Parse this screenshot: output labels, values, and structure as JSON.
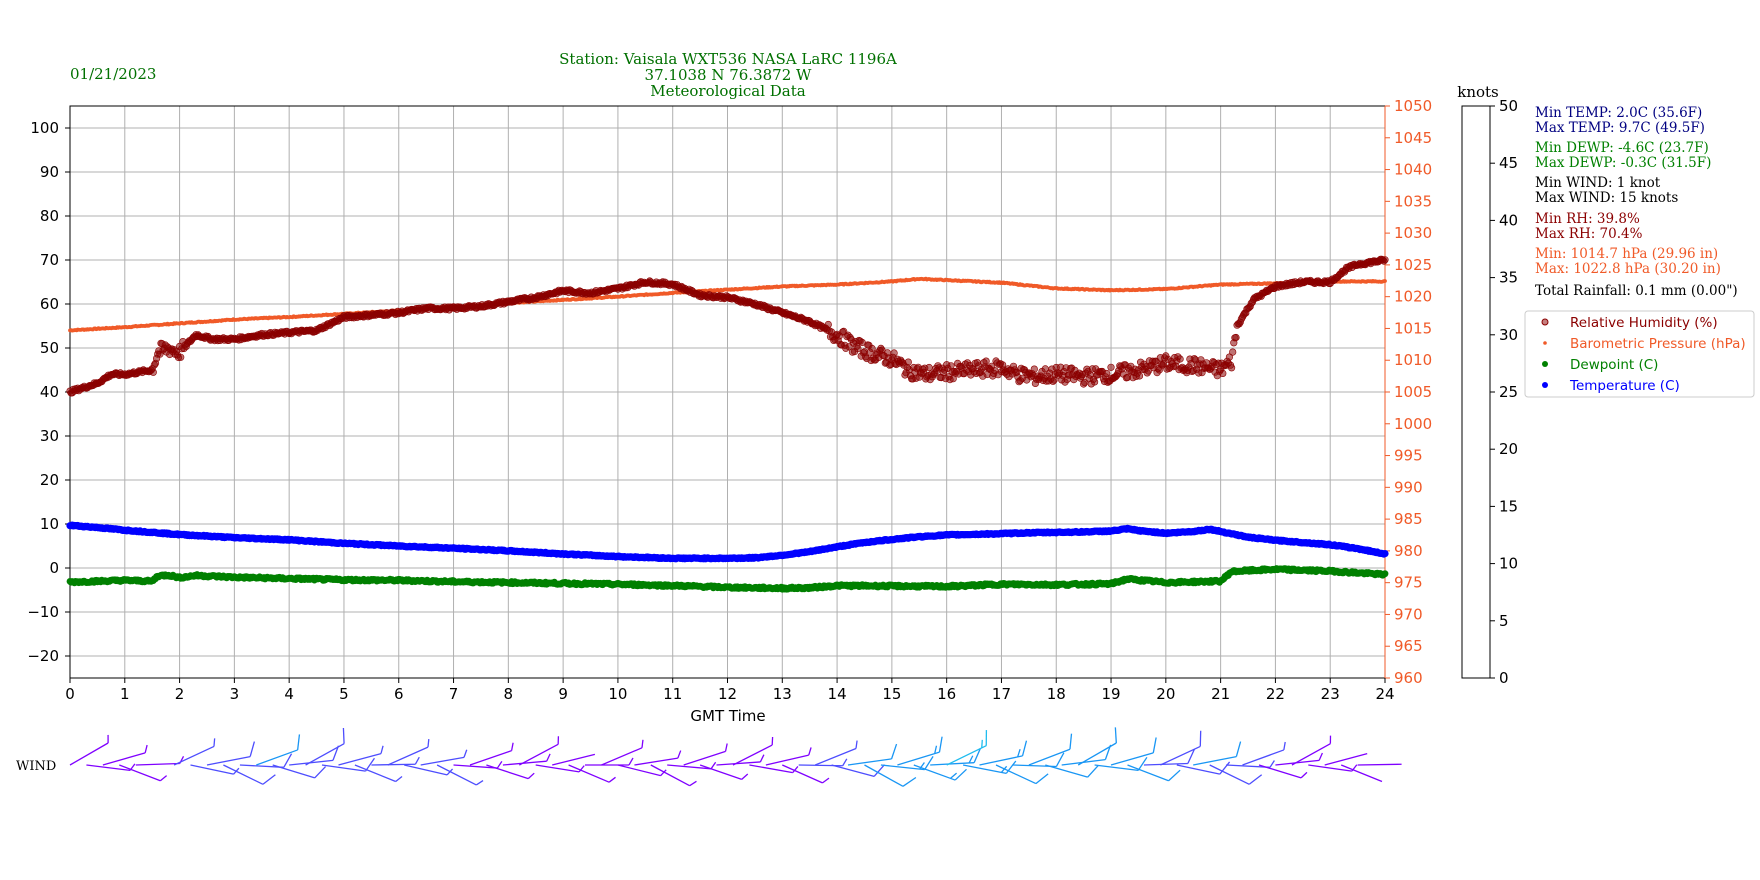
{
  "header": {
    "date": "01/21/2023",
    "title_lines": [
      "Station:  Vaisala WXT536  NASA LaRC 1196A",
      "37.1038 N 76.3872 W",
      "Meteorological Data"
    ]
  },
  "colors": {
    "green": "#007000",
    "rh": "#8b0000",
    "pressure": "#f05a28",
    "temperature": "#0000ff",
    "dewpoint": "#008000",
    "navy": "#000080"
  },
  "chart_data": {
    "type": "scatter",
    "xlabel": "GMT Time",
    "xlim": [
      0,
      24
    ],
    "x_ticks": [
      0,
      1,
      2,
      3,
      4,
      5,
      6,
      7,
      8,
      9,
      10,
      11,
      12,
      13,
      14,
      15,
      16,
      17,
      18,
      19,
      20,
      21,
      22,
      23,
      24
    ],
    "left_axis": {
      "ylim": [
        -25,
        105
      ],
      "ticks": [
        -20,
        -10,
        0,
        10,
        20,
        30,
        40,
        50,
        60,
        70,
        80,
        90,
        100
      ]
    },
    "right_axis": {
      "ylim": [
        960,
        1050
      ],
      "ticks": [
        960,
        965,
        970,
        975,
        980,
        985,
        990,
        995,
        1000,
        1005,
        1010,
        1015,
        1020,
        1025,
        1030,
        1035,
        1040,
        1045,
        1050
      ]
    },
    "grid": true,
    "legend_position": "right",
    "series": [
      {
        "name": "Relative Humidity (%)",
        "color": "#8b0000",
        "axis": "left",
        "x": [
          0,
          0.5,
          0.75,
          1,
          1.5,
          1.6,
          1.8,
          2,
          2.3,
          2.6,
          3,
          3.5,
          4,
          4.5,
          5,
          5.5,
          6,
          6.5,
          7,
          7.5,
          8,
          8.5,
          9,
          9.5,
          10,
          10.5,
          11,
          11.5,
          12,
          12.5,
          13,
          13.5,
          14,
          14.3,
          14.6,
          15,
          15.3,
          15.6,
          16,
          16.5,
          17,
          17.3,
          17.6,
          18,
          18.5,
          19,
          19.5,
          20,
          20.5,
          21,
          21.2,
          21.3,
          21.6,
          22,
          22.5,
          23,
          23.3,
          23.5,
          24
        ],
        "y": [
          40,
          42,
          44,
          44,
          45,
          49,
          50,
          49,
          53,
          52,
          52,
          53,
          53.5,
          54,
          57,
          57.5,
          58,
          59,
          59,
          59.5,
          60.5,
          61.5,
          63,
          62.5,
          63.5,
          65,
          64.5,
          62,
          61.5,
          60,
          58,
          56,
          53,
          50.5,
          49,
          47.5,
          45,
          44,
          44.5,
          45,
          45.5,
          44,
          43.5,
          44,
          43.5,
          44,
          45,
          46.5,
          46,
          45,
          47,
          55,
          61,
          64,
          65,
          65,
          68,
          69,
          70
        ]
      },
      {
        "name": "Barometric Pressure (hPa)",
        "color": "#f05a28",
        "axis": "right",
        "x": [
          0,
          1,
          2,
          3,
          4,
          5,
          6,
          7,
          8,
          9,
          10,
          11,
          12,
          13,
          14,
          15,
          15.5,
          16,
          17,
          18,
          19,
          20,
          21,
          22,
          23,
          24
        ],
        "y": [
          1014.7,
          1015.2,
          1015.8,
          1016.4,
          1016.8,
          1017.3,
          1017.8,
          1018.4,
          1019,
          1019.5,
          1020,
          1020.6,
          1021.1,
          1021.6,
          1021.9,
          1022.4,
          1022.8,
          1022.6,
          1022.2,
          1021.3,
          1021,
          1021.2,
          1021.9,
          1022.1,
          1022.4,
          1022.4
        ]
      },
      {
        "name": "Dewpoint (C)",
        "color": "#008000",
        "axis": "left",
        "x": [
          0,
          0.5,
          1,
          1.5,
          1.6,
          1.8,
          2,
          2.3,
          3,
          4,
          5,
          6,
          7,
          8,
          9,
          10,
          11,
          12,
          13,
          13.5,
          14,
          15,
          16,
          17,
          18,
          19,
          19.3,
          20,
          21,
          21.2,
          21.5,
          22,
          23,
          24
        ],
        "y": [
          -3.2,
          -3,
          -2.8,
          -3,
          -1.8,
          -1.6,
          -2.2,
          -1.7,
          -2.1,
          -2.4,
          -2.7,
          -2.8,
          -3.1,
          -3.3,
          -3.5,
          -3.7,
          -4,
          -4.4,
          -4.6,
          -4.5,
          -4,
          -4.1,
          -4.2,
          -3.7,
          -3.8,
          -3.6,
          -2.5,
          -3.3,
          -3,
          -0.8,
          -0.6,
          -0.3,
          -0.7,
          -1.5
        ]
      },
      {
        "name": "Temperature (C)",
        "color": "#0000ff",
        "axis": "left",
        "x": [
          0,
          0.5,
          1,
          1.5,
          2,
          3,
          4,
          5,
          6,
          7,
          8,
          9,
          10,
          11,
          12,
          12.5,
          13,
          13.5,
          14,
          14.5,
          15,
          15.5,
          16,
          17,
          17.5,
          18,
          18.5,
          19,
          19.3,
          19.5,
          20,
          20.5,
          20.8,
          21,
          21.5,
          22,
          22.5,
          23,
          23.5,
          24
        ],
        "y": [
          9.7,
          9.2,
          8.6,
          8.1,
          7.6,
          6.9,
          6.4,
          5.6,
          5,
          4.5,
          3.9,
          3.2,
          2.6,
          2.2,
          2.2,
          2.3,
          2.9,
          3.7,
          4.8,
          5.8,
          6.5,
          7.1,
          7.5,
          7.8,
          8,
          8.1,
          8.2,
          8.4,
          8.9,
          8.5,
          7.9,
          8.3,
          8.8,
          8.3,
          7,
          6.3,
          5.8,
          5.3,
          4.4,
          3.2
        ]
      }
    ],
    "colorbar": {
      "label": "knots",
      "ticks": [
        0,
        5,
        10,
        15,
        20,
        25,
        30,
        35,
        40,
        45,
        50
      ],
      "colors": [
        "#7f00ff",
        "#4d4dfe",
        "#1996f4",
        "#1fbcef",
        "#2fdfdc",
        "#53f5c0",
        "#99fca5",
        "#cddf7f",
        "#ffa35a",
        "#ff5530",
        "#ff0000"
      ]
    },
    "wind": {
      "label": "WIND",
      "times": [
        0,
        0.3,
        0.6,
        0.9,
        1.2,
        1.9,
        2.2,
        2.5,
        2.8,
        3.1,
        3.4,
        3.7,
        4,
        4.3,
        4.6,
        4.9,
        5.2,
        5.5,
        5.8,
        6.1,
        6.4,
        6.7,
        7,
        7.3,
        7.6,
        7.9,
        8.2,
        8.5,
        8.8,
        9.1,
        9.4,
        9.7,
        10,
        10.3,
        10.6,
        10.9,
        11.2,
        11.5,
        11.8,
        12.1,
        12.4,
        12.7,
        13,
        13.3,
        13.6,
        13.9,
        14.2,
        14.5,
        14.8,
        15.1,
        15.4,
        15.7,
        16,
        16.3,
        16.6,
        16.9,
        17.2,
        17.5,
        17.8,
        18.1,
        18.4,
        18.7,
        19,
        19.3,
        19.6,
        19.9,
        20.2,
        20.5,
        20.8,
        21.1,
        21.4,
        21.7,
        22,
        22.3,
        22.6,
        22.9,
        23.2,
        23.5
      ],
      "speeds": [
        3,
        4,
        4,
        4,
        3,
        5,
        7,
        8,
        9,
        9,
        10,
        8,
        8,
        9,
        8,
        7,
        7,
        6,
        7,
        6,
        5,
        5,
        4,
        3,
        4,
        3,
        3,
        3,
        2,
        3,
        3,
        4,
        4,
        4,
        4,
        4,
        3,
        3,
        3,
        3,
        3,
        4,
        4,
        5,
        7,
        9,
        10,
        11,
        13,
        14,
        14,
        14,
        15,
        14,
        13,
        12,
        12,
        11,
        11,
        12,
        12,
        11,
        10,
        10,
        9,
        9,
        9,
        10,
        9,
        7,
        5,
        4,
        3,
        3,
        3,
        2,
        2,
        2
      ]
    }
  },
  "stats": {
    "min_temp": "Min TEMP: 2.0C (35.6F)",
    "max_temp": "Max TEMP: 9.7C (49.5F)",
    "min_dewp": "Min DEWP: -4.6C (23.7F)",
    "max_dewp": "Max DEWP: -0.3C (31.5F)",
    "min_wind": "Min WIND: 1 knot",
    "max_wind": "Max WIND: 15 knots",
    "min_rh": "Min RH: 39.8%",
    "max_rh": "Max RH: 70.4%",
    "min_p": "Min: 1014.7 hPa (29.96 in)",
    "max_p": "Max: 1022.8 hPa (30.20 in)",
    "rain": "Total Rainfall: 0.1 mm (0.00\")"
  }
}
